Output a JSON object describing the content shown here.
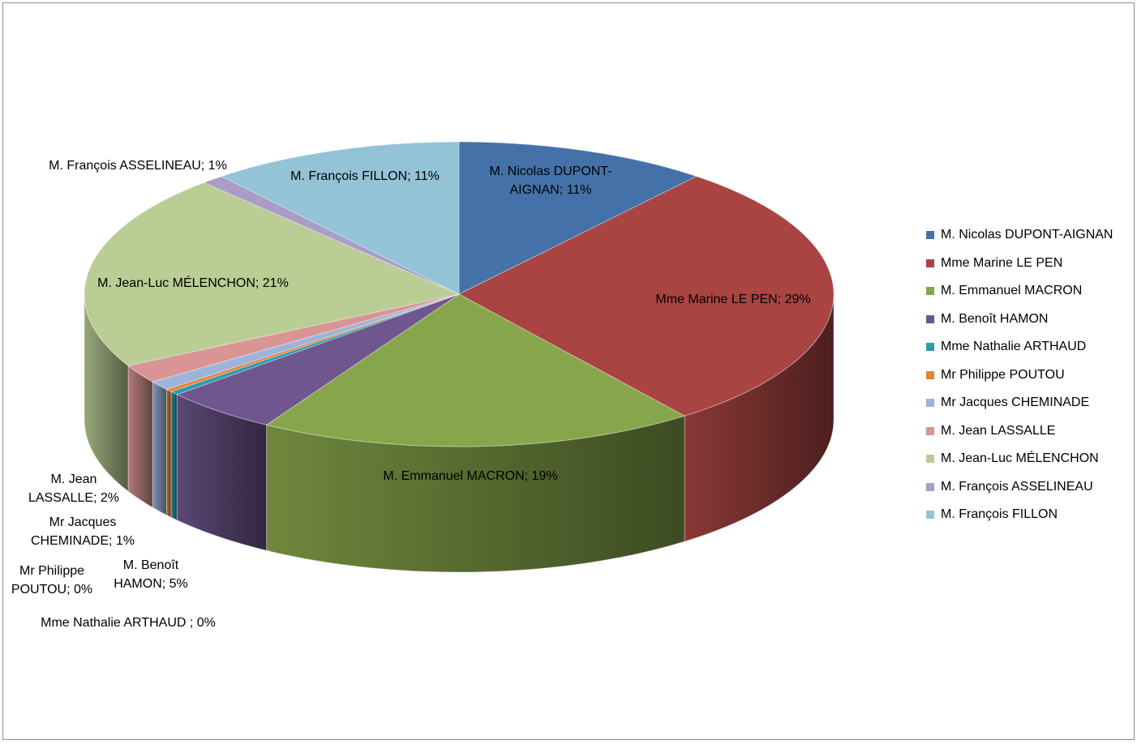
{
  "chart_data": {
    "type": "pie",
    "title": "",
    "three_d": true,
    "legend": "right",
    "slices": [
      {
        "name": "M. Nicolas DUPONT-AIGNAN",
        "value": 11,
        "label": [
          "M. Nicolas DUPONT-",
          "AIGNAN; 11%"
        ],
        "color": "#4472A8"
      },
      {
        "name": "Mme Marine LE PEN",
        "value": 29,
        "label": [
          "Mme Marine LE PEN; 29%"
        ],
        "color": "#A94442"
      },
      {
        "name": "M. Emmanuel MACRON",
        "value": 19,
        "label": [
          "M. Emmanuel MACRON; 19%"
        ],
        "color": "#87A64B"
      },
      {
        "name": "M. Benoît HAMON",
        "value": 5,
        "label": [
          "M. Benoît",
          "HAMON; 5%"
        ],
        "color": "#6F568F"
      },
      {
        "name": "Mme Nathalie ARTHAUD",
        "value": 0.4,
        "label": [
          "Mme Nathalie ARTHAUD  ; 0%"
        ],
        "color": "#2E9BAE"
      },
      {
        "name": "Mr Philippe POUTOU",
        "value": 0.3,
        "label": [
          "Mr Philippe",
          "POUTOU; 0%"
        ],
        "color": "#E8822E"
      },
      {
        "name": "Mr Jacques CHEMINADE",
        "value": 1,
        "label": [
          "Mr Jacques",
          "CHEMINADE; 1%"
        ],
        "color": "#9CB3DC"
      },
      {
        "name": "M. Jean LASSALLE",
        "value": 2,
        "label": [
          "M. Jean",
          "LASSALLE; 2%"
        ],
        "color": "#D99594"
      },
      {
        "name": "M. Jean-Luc MÉLENCHON",
        "value": 21,
        "label": [
          "M. Jean-Luc MÉLENCHON; 21%"
        ],
        "color": "#BACD95"
      },
      {
        "name": "M. François ASSELINEAU",
        "value": 1,
        "label": [
          "M. François ASSELINEAU; 1%"
        ],
        "color": "#AB9CC7"
      },
      {
        "name": "M. François FILLON",
        "value": 11,
        "label": [
          "M. François FILLON; 11%"
        ],
        "color": "#92C3D6"
      }
    ]
  }
}
